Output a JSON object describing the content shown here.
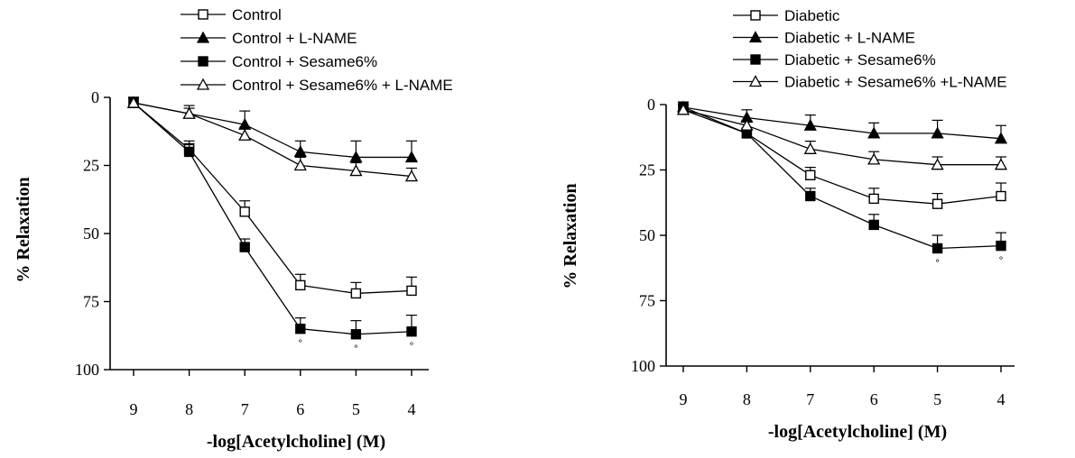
{
  "chart_data": [
    {
      "type": "line",
      "title": "",
      "xlabel": "-log[Acetylcholine] (M)",
      "ylabel": "% Relaxation",
      "categories": [
        "9",
        "8",
        "7",
        "6",
        "5",
        "4"
      ],
      "ylim": [
        0,
        100
      ],
      "y_inverted": true,
      "yticks": [
        "0",
        "25",
        "50",
        "75",
        "100"
      ],
      "grid": false,
      "legend_position": "top",
      "series": [
        {
          "name": "Control",
          "marker": "open-square",
          "values": [
            2,
            19,
            42,
            69,
            72,
            71
          ],
          "errors": [
            2,
            3,
            4,
            4,
            4,
            5
          ]
        },
        {
          "name": "Control + L-NAME",
          "marker": "filled-triangle",
          "values": [
            2,
            6,
            10,
            20,
            22,
            22
          ],
          "errors": [
            2,
            3,
            5,
            4,
            6,
            6
          ]
        },
        {
          "name": "Control + Sesame6%",
          "marker": "filled-square",
          "values": [
            2,
            20,
            55,
            85,
            87,
            86
          ],
          "errors": [
            2,
            3,
            3,
            4,
            5,
            6
          ]
        },
        {
          "name": "Control + Sesame6% + L-NAME",
          "marker": "open-triangle",
          "values": [
            2,
            6,
            14,
            25,
            27,
            29
          ],
          "errors": [
            2,
            2,
            3,
            3,
            3,
            3
          ]
        }
      ],
      "significance_marks": [
        {
          "series": 2,
          "points": [
            3,
            4,
            5
          ],
          "symbol": "°"
        }
      ]
    },
    {
      "type": "line",
      "title": "",
      "xlabel": "-log[Acetylcholine] (M)",
      "ylabel": "% Relaxation",
      "categories": [
        "9",
        "8",
        "7",
        "6",
        "5",
        "4"
      ],
      "ylim": [
        0,
        100
      ],
      "y_inverted": true,
      "yticks": [
        "0",
        "25",
        "50",
        "75",
        "100"
      ],
      "grid": false,
      "legend_position": "top",
      "series": [
        {
          "name": "Diabetic",
          "marker": "open-square",
          "values": [
            2,
            11,
            27,
            36,
            38,
            35
          ],
          "errors": [
            2,
            2,
            3,
            4,
            4,
            5
          ]
        },
        {
          "name": "Diabetic + L-NAME",
          "marker": "filled-triangle",
          "values": [
            1,
            5,
            8,
            11,
            11,
            13
          ],
          "errors": [
            2,
            3,
            4,
            4,
            5,
            5
          ]
        },
        {
          "name": "Diabetic + Sesame6%",
          "marker": "filled-square",
          "values": [
            1,
            11,
            35,
            46,
            55,
            54
          ],
          "errors": [
            2,
            2,
            3,
            4,
            5,
            5
          ]
        },
        {
          "name": "Diabetic + Sesame6% +L-NAME",
          "marker": "open-triangle",
          "values": [
            2,
            8,
            17,
            21,
            23,
            23
          ],
          "errors": [
            2,
            2,
            3,
            3,
            3,
            3
          ]
        }
      ],
      "significance_marks": [
        {
          "series": 2,
          "points": [
            4,
            5
          ],
          "symbol": "°"
        }
      ]
    }
  ]
}
